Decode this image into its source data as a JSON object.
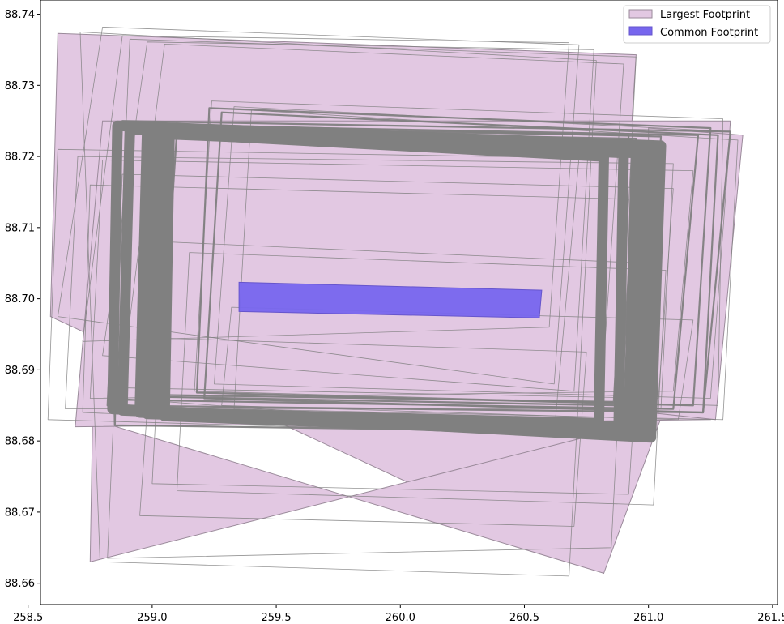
{
  "chart_data": {
    "type": "area",
    "title": "",
    "xlabel": "",
    "ylabel": "",
    "xlim": [
      258.55,
      261.52
    ],
    "ylim": [
      88.657,
      88.742
    ],
    "xticks": [
      "258.5",
      "259.0",
      "259.5",
      "260.0",
      "260.5",
      "261.0",
      "261.5"
    ],
    "yticks": [
      "88.66",
      "88.67",
      "88.68",
      "88.69",
      "88.70",
      "88.71",
      "88.72",
      "88.73",
      "88.74"
    ],
    "grid": false,
    "legend": {
      "placement": "top-right",
      "entries": [
        "Largest Footprint",
        "Common Footprint"
      ]
    },
    "colors": {
      "largest_fill": "#e2c8e2",
      "largest_edge": "#9a8a9a",
      "common_fill": "#7766ee",
      "common_edge": "#6655cc",
      "outline": "#808080"
    },
    "series": [
      {
        "name": "Largest Footprint",
        "polygons": [
          [
            [
              258.62,
              88.7373
            ],
            [
              260.95,
              88.7343
            ],
            [
              260.82,
              88.6614
            ],
            [
              258.59,
              88.6975
            ]
          ],
          [
            [
              258.76,
              88.683
            ],
            [
              260.82,
              88.6614
            ],
            [
              261.05,
              88.6832
            ],
            [
              258.75,
              88.663
            ]
          ],
          [
            [
              258.8,
              88.725
            ],
            [
              261.33,
              88.725
            ],
            [
              261.25,
              88.683
            ],
            [
              258.69,
              88.682
            ]
          ],
          [
            [
              261.0,
              88.724
            ],
            [
              261.38,
              88.723
            ],
            [
              261.27,
              88.683
            ],
            [
              261.0,
              88.684
            ]
          ]
        ]
      },
      {
        "name": "Common Footprint",
        "polygons": [
          [
            [
              259.35,
              88.7023
            ],
            [
              260.57,
              88.7012
            ],
            [
              260.56,
              88.6973
            ],
            [
              259.35,
              88.6982
            ]
          ]
        ]
      }
    ],
    "outlines": {
      "thin": [
        [
          258.71,
          88.7375,
          260.79,
          88.7335,
          260.68,
          88.661,
          258.79,
          88.663
        ],
        [
          258.8,
          88.7382,
          260.72,
          88.7357,
          260.62,
          88.688,
          258.62,
          88.6975
        ],
        [
          258.88,
          88.737,
          260.68,
          88.736,
          260.6,
          88.696,
          258.72,
          88.694
        ],
        [
          258.91,
          88.7365,
          260.95,
          88.734,
          260.85,
          88.665,
          258.82,
          88.6635
        ],
        [
          258.98,
          88.7361,
          260.78,
          88.735,
          260.7,
          88.687,
          258.8,
          88.692
        ],
        [
          259.05,
          88.7358,
          260.9,
          88.733,
          260.8,
          88.681,
          258.87,
          88.686
        ],
        [
          258.62,
          88.721,
          260.72,
          88.7198,
          260.62,
          88.681,
          258.58,
          88.683
        ],
        [
          258.7,
          88.72,
          261.1,
          88.719,
          261.05,
          88.6845,
          258.65,
          88.6845
        ],
        [
          258.8,
          88.7195,
          261.18,
          88.718,
          261.1,
          88.687,
          258.75,
          88.686
        ],
        [
          259.24,
          88.7278,
          261.3,
          88.7253,
          261.28,
          88.685,
          259.17,
          88.687
        ],
        [
          259.33,
          88.727,
          261.33,
          88.7235,
          261.25,
          88.686,
          259.25,
          88.688
        ],
        [
          259.4,
          88.7265,
          261.36,
          88.7223,
          261.3,
          88.683,
          259.33,
          88.6845
        ],
        [
          259.05,
          88.708,
          260.98,
          88.705,
          260.92,
          88.6725,
          259.0,
          88.674
        ],
        [
          259.15,
          88.7065,
          261.07,
          88.704,
          261.02,
          88.671,
          259.1,
          88.673
        ],
        [
          259.0,
          88.6945,
          260.75,
          88.6925,
          260.7,
          88.668,
          258.95,
          88.6695
        ],
        [
          259.32,
          88.6988,
          261.18,
          88.697,
          261.12,
          88.683,
          259.28,
          88.685
        ],
        [
          258.75,
          88.716,
          260.92,
          88.714,
          260.86,
          88.681,
          258.72,
          88.684
        ],
        [
          258.88,
          88.7175,
          261.1,
          88.7155,
          261.04,
          88.686,
          258.84,
          88.6875
        ]
      ],
      "medium": [
        [
          258.88,
          88.725,
          261.33,
          88.7235,
          261.22,
          88.684,
          258.82,
          88.685
        ],
        [
          258.93,
          88.7245,
          261.2,
          88.723,
          261.1,
          88.6845,
          258.86,
          88.6858
        ],
        [
          259.23,
          88.7268,
          261.25,
          88.724,
          261.18,
          88.685,
          259.18,
          88.6868
        ],
        [
          259.28,
          88.7262,
          261.28,
          88.723,
          261.22,
          88.684,
          259.21,
          88.686
        ],
        [
          259.04,
          88.724,
          260.92,
          88.723,
          260.86,
          88.6855,
          258.98,
          88.6865
        ],
        [
          259.1,
          88.7237,
          260.95,
          88.7225,
          260.89,
          88.685,
          259.03,
          88.6862
        ],
        [
          258.87,
          88.7247,
          261.05,
          88.7228,
          260.99,
          88.6812,
          258.85,
          88.6822
        ]
      ],
      "thick": [
        [
          258.86,
          88.7243,
          261.05,
          88.7215,
          261.01,
          88.6805,
          258.84,
          88.6845
        ],
        [
          258.98,
          88.724,
          261.02,
          88.7212,
          260.99,
          88.6808,
          258.95,
          88.684
        ],
        [
          259.07,
          88.7235,
          261.04,
          88.7208,
          261.0,
          88.681,
          259.05,
          88.6835
        ],
        [
          258.91,
          88.7238,
          260.99,
          88.721,
          260.96,
          88.6815,
          258.88,
          88.6843
        ],
        [
          259.0,
          88.7236,
          260.9,
          88.7205,
          260.88,
          88.682,
          258.98,
          88.6838
        ],
        [
          259.03,
          88.7233,
          260.82,
          88.72,
          260.8,
          88.6825,
          259.01,
          88.684
        ],
        [
          259.01,
          88.7232,
          260.95,
          88.7205,
          260.92,
          88.682,
          258.99,
          88.684
        ]
      ]
    }
  }
}
